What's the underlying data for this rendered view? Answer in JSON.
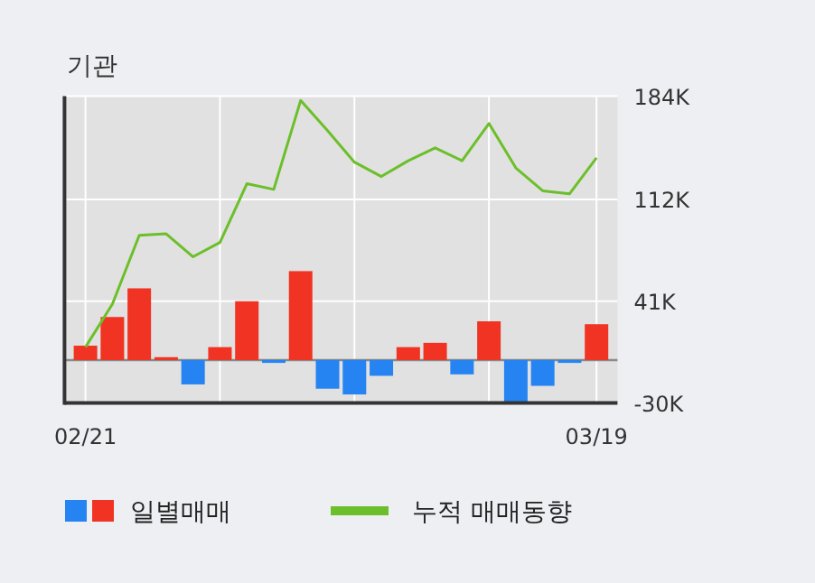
{
  "chart_data": {
    "type": "bar",
    "title": "기관",
    "categories": [
      "02/21",
      null,
      null,
      null,
      null,
      null,
      null,
      null,
      null,
      null,
      null,
      null,
      null,
      null,
      null,
      null,
      null,
      null,
      null,
      "03/19"
    ],
    "ylim": [
      -30000,
      184000
    ],
    "yticks": [
      {
        "value": -30000,
        "label": "-30K"
      },
      {
        "value": 41000,
        "label": "41K"
      },
      {
        "value": 112000,
        "label": "112K"
      },
      {
        "value": 184000,
        "label": "184K"
      }
    ],
    "grid": true,
    "legend": "bottom",
    "ref_lines": [
      {
        "axis": "y",
        "value": 0,
        "color": "#8a8a8a"
      }
    ],
    "series": [
      {
        "name": "일별매매",
        "colors": [
          "#f03322",
          "#f03322",
          "#f03322",
          "#f03322",
          "#2584f2",
          "#f03322",
          "#f03322",
          "#2584f2",
          "#f03322",
          "#2584f2",
          "#2584f2",
          "#2584f2",
          "#f03322",
          "#f03322",
          "#2584f2",
          "#f03322",
          "#2584f2",
          "#2584f2",
          "#2584f2",
          "#f03322"
        ],
        "values": [
          10000,
          30000,
          50000,
          2000,
          -17000,
          9000,
          41000,
          -2000,
          62000,
          -20000,
          -24000,
          -11000,
          9000,
          12000,
          -10000,
          27000,
          -30000,
          -18000,
          -2000,
          25000
        ]
      },
      {
        "name": "누적 매매동향",
        "type": "line",
        "color": "#6cbf2a",
        "values": [
          9000,
          39000,
          87000,
          88000,
          72000,
          82000,
          123000,
          119000,
          181000,
          160000,
          138000,
          128000,
          139000,
          148000,
          139000,
          165000,
          134000,
          118000,
          116000,
          141000
        ]
      }
    ]
  }
}
